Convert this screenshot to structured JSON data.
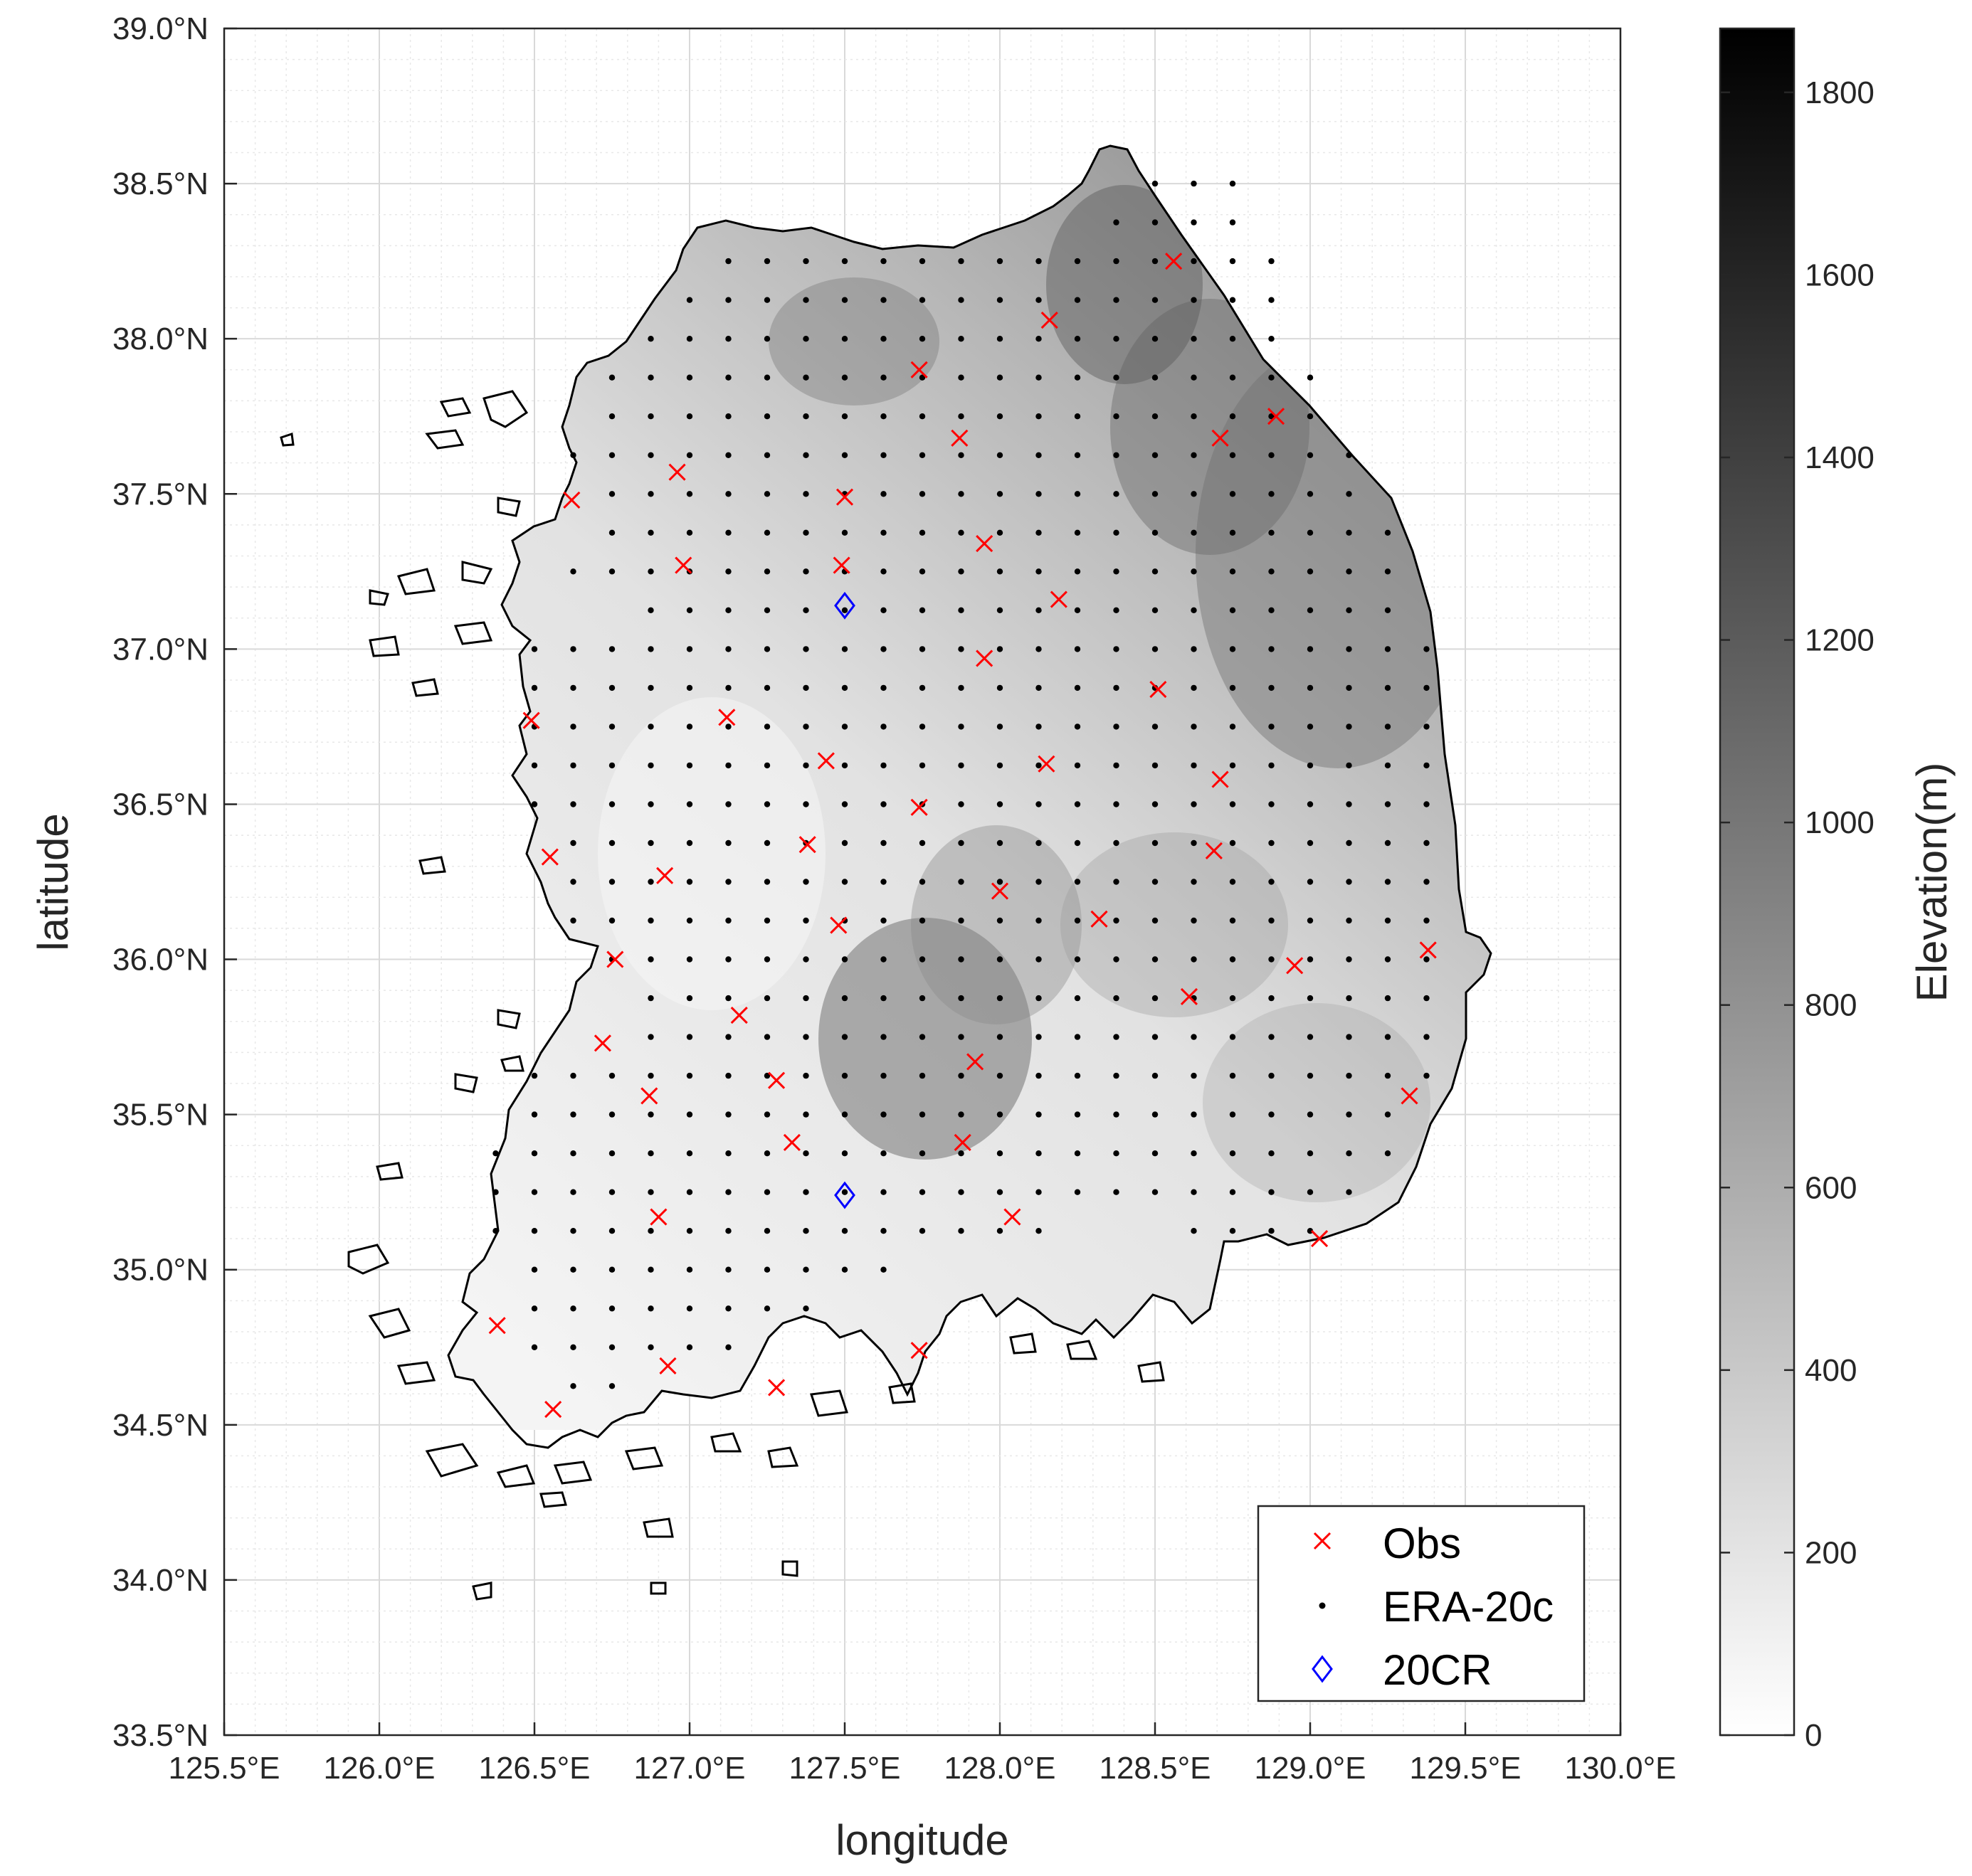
{
  "colors": {
    "obs": "#ff0000",
    "era": "#000000",
    "cr": "#0000ff",
    "axis": "#262626",
    "grid_major": "#d9d9d9",
    "grid_minor": "#e8e8e8"
  },
  "axes": {
    "xlabel": "longitude",
    "ylabel": "latitude",
    "xticks": [
      "125.5°E",
      "126.0°E",
      "126.5°E",
      "127.0°E",
      "127.5°E",
      "128.0°E",
      "128.5°E",
      "129.0°E",
      "129.5°E",
      "130.0°E"
    ],
    "yticks": [
      "33.5°N",
      "34.0°N",
      "34.5°N",
      "35.0°N",
      "35.5°N",
      "36.0°N",
      "36.5°N",
      "37.0°N",
      "37.5°N",
      "38.0°N",
      "38.5°N",
      "39.0°N"
    ]
  },
  "colorbar": {
    "label": "Elevation(m)",
    "ticks": [
      "0",
      "200",
      "400",
      "600",
      "800",
      "1000",
      "1200",
      "1400",
      "1600",
      "1800"
    ]
  },
  "legend": {
    "position": "bottom-right",
    "items": [
      {
        "label": "Obs",
        "marker": "x"
      },
      {
        "label": "ERA-20c",
        "marker": "dot"
      },
      {
        "label": "20CR",
        "marker": "diamond"
      }
    ]
  },
  "chart_data": {
    "type": "scatter",
    "xlim": [
      125.5,
      130.0
    ],
    "ylim": [
      33.5,
      39.0
    ],
    "grid": true,
    "background": "grayscale elevation raster with coastline",
    "colorbar_range": [
      0,
      1870
    ],
    "series": [
      {
        "name": "Obs",
        "marker": "x",
        "points": [
          [
            128.56,
            38.25
          ],
          [
            128.16,
            38.06
          ],
          [
            127.74,
            37.9
          ],
          [
            128.89,
            37.75
          ],
          [
            128.71,
            37.68
          ],
          [
            127.87,
            37.68
          ],
          [
            126.96,
            37.57
          ],
          [
            126.62,
            37.48
          ],
          [
            127.5,
            37.49
          ],
          [
            127.95,
            37.34
          ],
          [
            126.98,
            37.27
          ],
          [
            127.49,
            37.27
          ],
          [
            128.19,
            37.16
          ],
          [
            127.95,
            36.97
          ],
          [
            128.51,
            36.87
          ],
          [
            126.49,
            36.77
          ],
          [
            127.12,
            36.78
          ],
          [
            127.44,
            36.64
          ],
          [
            128.15,
            36.63
          ],
          [
            128.71,
            36.58
          ],
          [
            127.74,
            36.49
          ],
          [
            127.38,
            36.37
          ],
          [
            128.69,
            36.35
          ],
          [
            126.55,
            36.33
          ],
          [
            126.92,
            36.27
          ],
          [
            128.0,
            36.22
          ],
          [
            128.32,
            36.13
          ],
          [
            127.48,
            36.11
          ],
          [
            129.38,
            36.03
          ],
          [
            126.76,
            36.0
          ],
          [
            128.95,
            35.98
          ],
          [
            128.61,
            35.88
          ],
          [
            127.16,
            35.82
          ],
          [
            126.72,
            35.73
          ],
          [
            127.92,
            35.67
          ],
          [
            127.28,
            35.61
          ],
          [
            126.87,
            35.56
          ],
          [
            129.32,
            35.56
          ],
          [
            127.33,
            35.41
          ],
          [
            127.88,
            35.41
          ],
          [
            126.9,
            35.17
          ],
          [
            128.04,
            35.17
          ],
          [
            129.03,
            35.1
          ],
          [
            126.38,
            34.82
          ],
          [
            127.74,
            34.74
          ],
          [
            126.93,
            34.69
          ],
          [
            127.28,
            34.62
          ],
          [
            126.56,
            34.55
          ]
        ]
      },
      {
        "name": "ERA-20c",
        "marker": "dot",
        "rows": [
          {
            "lat": 38.5,
            "lons": [
              [
                128.5,
                128.75
              ]
            ]
          },
          {
            "lat": 38.375,
            "lons": [
              [
                128.375,
                128.75
              ]
            ]
          },
          {
            "lat": 38.25,
            "lons": [
              [
                127.125,
                128.875
              ]
            ]
          },
          {
            "lat": 38.125,
            "lons": [
              [
                127.0,
                128.875
              ]
            ]
          },
          {
            "lat": 38.0,
            "lons": [
              [
                126.875,
                128.875
              ]
            ]
          },
          {
            "lat": 37.875,
            "lons": [
              [
                126.75,
                129.0
              ]
            ]
          },
          {
            "lat": 37.75,
            "lons": [
              [
                126.75,
                129.0
              ]
            ]
          },
          {
            "lat": 37.625,
            "lons": [
              [
                126.625,
                129.125
              ]
            ]
          },
          {
            "lat": 37.5,
            "lons": [
              [
                126.75,
                129.125
              ]
            ]
          },
          {
            "lat": 37.375,
            "lons": [
              [
                126.75,
                129.25
              ]
            ]
          },
          {
            "lat": 37.25,
            "lons": [
              [
                126.625,
                129.25
              ]
            ]
          },
          {
            "lat": 37.125,
            "lons": [
              [
                126.875,
                129.25
              ]
            ]
          },
          {
            "lat": 37.0,
            "lons": [
              [
                126.5,
                129.375
              ]
            ]
          },
          {
            "lat": 36.875,
            "lons": [
              [
                126.5,
                129.375
              ]
            ]
          },
          {
            "lat": 36.75,
            "lons": [
              [
                126.5,
                129.375
              ]
            ]
          },
          {
            "lat": 36.625,
            "lons": [
              [
                126.5,
                129.375
              ]
            ]
          },
          {
            "lat": 36.5,
            "lons": [
              [
                126.5,
                129.375
              ]
            ]
          },
          {
            "lat": 36.375,
            "lons": [
              [
                126.625,
                129.375
              ]
            ]
          },
          {
            "lat": 36.25,
            "lons": [
              [
                126.625,
                129.375
              ]
            ]
          },
          {
            "lat": 36.125,
            "lons": [
              [
                126.625,
                129.375
              ]
            ]
          },
          {
            "lat": 36.0,
            "lons": [
              [
                126.75,
                129.375
              ]
            ]
          },
          {
            "lat": 35.875,
            "lons": [
              [
                126.875,
                129.375
              ]
            ]
          },
          {
            "lat": 35.75,
            "lons": [
              [
                126.875,
                129.375
              ]
            ]
          },
          {
            "lat": 35.625,
            "lons": [
              [
                126.5,
                129.375
              ]
            ]
          },
          {
            "lat": 35.5,
            "lons": [
              [
                126.5,
                129.25
              ]
            ]
          },
          {
            "lat": 35.375,
            "lons": [
              [
                126.375,
                129.25
              ]
            ]
          },
          {
            "lat": 35.25,
            "lons": [
              [
                126.375,
                129.125
              ]
            ]
          },
          {
            "lat": 35.125,
            "lons": [
              [
                126.375,
                128.125
              ],
              [
                128.625,
                129.0
              ]
            ]
          },
          {
            "lat": 35.0,
            "lons": [
              [
                126.5,
                127.625
              ]
            ]
          },
          {
            "lat": 34.875,
            "lons": [
              [
                126.5,
                127.375
              ]
            ]
          },
          {
            "lat": 34.75,
            "lons": [
              [
                126.5,
                127.125
              ]
            ]
          },
          {
            "lat": 34.625,
            "lons": [
              [
                126.625,
                126.75
              ]
            ]
          }
        ]
      },
      {
        "name": "20CR",
        "marker": "diamond",
        "points": [
          [
            127.5,
            37.14
          ],
          [
            127.5,
            35.24
          ]
        ]
      }
    ]
  }
}
